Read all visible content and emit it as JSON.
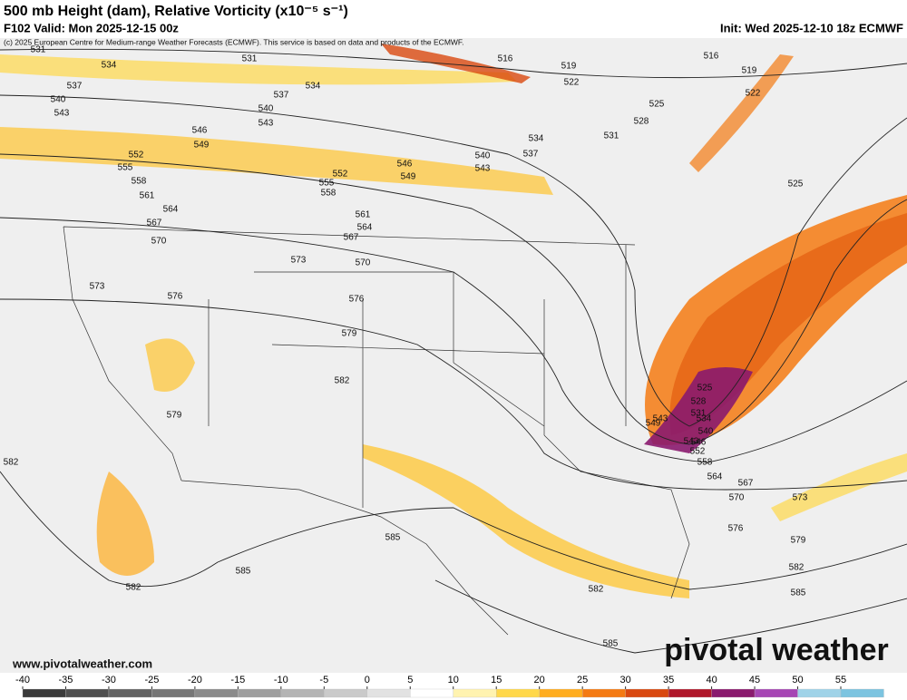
{
  "header": {
    "title": "500 mb Height (dam), Relative Vorticity (x10⁻⁵ s⁻¹)",
    "subtitle": "F102 Valid: Mon 2025-12-15 00z",
    "init": "Init: Wed 2025-12-10 18z ECMWF",
    "copyright": "(c) 2025 European Centre for Medium-range Weather Forecasts (ECMWF). This service is based on data and products of the ECMWF."
  },
  "map": {
    "contour_labels": [
      "531",
      "534",
      "531",
      "537",
      "540",
      "543",
      "537",
      "534",
      "540",
      "543",
      "546",
      "549",
      "552",
      "555",
      "558",
      "561",
      "564",
      "567",
      "570",
      "573",
      "576",
      "579",
      "582",
      "582",
      "585",
      "585",
      "582",
      "579",
      "576",
      "573",
      "570",
      "567",
      "564",
      "561",
      "558",
      "555",
      "552",
      "549",
      "546",
      "543",
      "540",
      "537",
      "534",
      "531",
      "528",
      "525",
      "522",
      "519",
      "516",
      "516",
      "519",
      "522",
      "525",
      "525",
      "528",
      "531",
      "534",
      "540",
      "543",
      "546",
      "552",
      "558",
      "564",
      "567",
      "570",
      "573",
      "576",
      "579",
      "582",
      "585",
      "582",
      "585",
      "549",
      "543"
    ]
  },
  "colorbar": {
    "ticks": [
      -40,
      -35,
      -30,
      -25,
      -20,
      -15,
      -10,
      -5,
      0,
      5,
      10,
      15,
      20,
      25,
      30,
      35,
      40,
      45,
      50,
      55
    ],
    "colors": [
      "#3a3a3a",
      "#4e4e4e",
      "#626262",
      "#767676",
      "#8a8a8a",
      "#9e9e9e",
      "#b4b4b4",
      "#cacaca",
      "#e2e2e2",
      "#ffffff",
      "#fff3b0",
      "#ffd84a",
      "#ffad1f",
      "#f47a12",
      "#d9480f",
      "#b0172a",
      "#8a1a6e",
      "#a646b4",
      "#9fd3e8",
      "#7cc4e0"
    ]
  },
  "footer": {
    "url": "www.pivotalweather.com",
    "logo": "pivotal weather"
  }
}
